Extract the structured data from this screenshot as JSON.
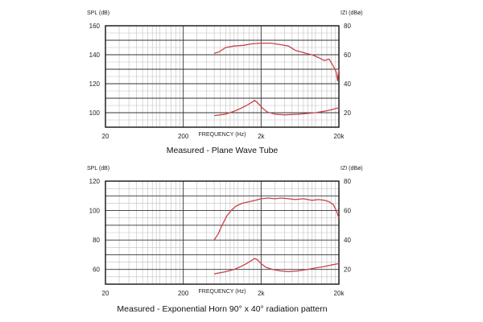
{
  "colors": {
    "curve": "#c8434a",
    "grid_major": "#333333",
    "grid_minor": "#bfbfbf",
    "frame": "#111111"
  },
  "chart_data": [
    {
      "type": "line",
      "caption": "Measured - Plane Wave Tube",
      "xlabel": "FREQUENCY (Hz)",
      "ylabel_left": "SPL (dB)",
      "ylabel_right": "IZI (dBø)",
      "x_scale": "log",
      "xlim": [
        20,
        20000
      ],
      "x_ticks": [
        {
          "v": 20,
          "label": "20"
        },
        {
          "v": 200,
          "label": "200"
        },
        {
          "v": 2000,
          "label": "2k"
        },
        {
          "v": 20000,
          "label": "20k"
        }
      ],
      "ylim_left": [
        90,
        160
      ],
      "y_ticks_left": [
        {
          "v": 100,
          "label": "100"
        },
        {
          "v": 120,
          "label": "120"
        },
        {
          "v": 140,
          "label": "140"
        },
        {
          "v": 160,
          "label": "160"
        }
      ],
      "ylim_right": [
        10,
        80
      ],
      "y_ticks_right": [
        {
          "v": 20,
          "label": "20"
        },
        {
          "v": 40,
          "label": "40"
        },
        {
          "v": 60,
          "label": "60"
        },
        {
          "v": 80,
          "label": "80"
        }
      ],
      "grid": true,
      "series": [
        {
          "axis": "left",
          "points": [
            [
              500,
              141
            ],
            [
              580,
              142
            ],
            [
              700,
              145
            ],
            [
              900,
              146
            ],
            [
              1200,
              146.5
            ],
            [
              1500,
              147.5
            ],
            [
              2000,
              148
            ],
            [
              2700,
              148
            ],
            [
              3500,
              147
            ],
            [
              4500,
              146
            ],
            [
              5500,
              143
            ],
            [
              6500,
              142
            ],
            [
              7500,
              141
            ],
            [
              9000,
              140
            ],
            [
              11000,
              138
            ],
            [
              13000,
              136
            ],
            [
              15000,
              137
            ],
            [
              17000,
              132
            ],
            [
              18500,
              128
            ],
            [
              19200,
              122
            ],
            [
              20000,
              130
            ]
          ]
        },
        {
          "axis": "right",
          "points": [
            [
              500,
              18
            ],
            [
              700,
              19
            ],
            [
              900,
              21
            ],
            [
              1100,
              23
            ],
            [
              1300,
              25
            ],
            [
              1500,
              27
            ],
            [
              1650,
              28.5
            ],
            [
              1750,
              27.5
            ],
            [
              1900,
              25.5
            ],
            [
              2100,
              23
            ],
            [
              2400,
              20.5
            ],
            [
              3000,
              19
            ],
            [
              4000,
              18.5
            ],
            [
              6000,
              19
            ],
            [
              8000,
              19.5
            ],
            [
              10000,
              20
            ],
            [
              13000,
              21
            ],
            [
              16000,
              22
            ],
            [
              20000,
              23.5
            ]
          ]
        }
      ]
    },
    {
      "type": "line",
      "caption": "Measured - Exponential Horn 90° x 40° radiation pattern",
      "xlabel": "FREQUENCY (Hz)",
      "ylabel_left": "SPL (dB)",
      "ylabel_right": "IZI (dBø)",
      "x_scale": "log",
      "xlim": [
        20,
        20000
      ],
      "x_ticks": [
        {
          "v": 20,
          "label": "20"
        },
        {
          "v": 200,
          "label": "200"
        },
        {
          "v": 2000,
          "label": "2k"
        },
        {
          "v": 20000,
          "label": "20k"
        }
      ],
      "ylim_left": [
        50,
        120
      ],
      "y_ticks_left": [
        {
          "v": 60,
          "label": "60"
        },
        {
          "v": 80,
          "label": "80"
        },
        {
          "v": 100,
          "label": "100"
        },
        {
          "v": 120,
          "label": "120"
        }
      ],
      "ylim_right": [
        10,
        80
      ],
      "y_ticks_right": [
        {
          "v": 20,
          "label": "20"
        },
        {
          "v": 40,
          "label": "40"
        },
        {
          "v": 60,
          "label": "60"
        },
        {
          "v": 80,
          "label": "80"
        }
      ],
      "grid": true,
      "series": [
        {
          "axis": "left",
          "points": [
            [
              500,
              80
            ],
            [
              560,
              84
            ],
            [
              630,
              90
            ],
            [
              720,
              96
            ],
            [
              820,
              100
            ],
            [
              950,
              103
            ],
            [
              1150,
              105
            ],
            [
              1400,
              106
            ],
            [
              1700,
              107
            ],
            [
              2000,
              108
            ],
            [
              2500,
              108.5
            ],
            [
              3000,
              108
            ],
            [
              3600,
              108.5
            ],
            [
              4500,
              108
            ],
            [
              5500,
              107.5
            ],
            [
              7000,
              108
            ],
            [
              9000,
              107
            ],
            [
              11000,
              107.5
            ],
            [
              13000,
              107
            ],
            [
              15000,
              106
            ],
            [
              17000,
              104
            ],
            [
              18500,
              100
            ],
            [
              20000,
              95
            ]
          ]
        },
        {
          "axis": "right",
          "points": [
            [
              500,
              17
            ],
            [
              700,
              18.5
            ],
            [
              900,
              20
            ],
            [
              1100,
              22
            ],
            [
              1300,
              24
            ],
            [
              1500,
              26
            ],
            [
              1650,
              27.5
            ],
            [
              1800,
              26.5
            ],
            [
              2000,
              24
            ],
            [
              2300,
              21.5
            ],
            [
              2800,
              20
            ],
            [
              3500,
              19
            ],
            [
              4500,
              18.5
            ],
            [
              6000,
              19
            ],
            [
              8000,
              20
            ],
            [
              10000,
              21
            ],
            [
              13000,
              22
            ],
            [
              16000,
              23
            ],
            [
              20000,
              24
            ]
          ]
        }
      ]
    }
  ]
}
